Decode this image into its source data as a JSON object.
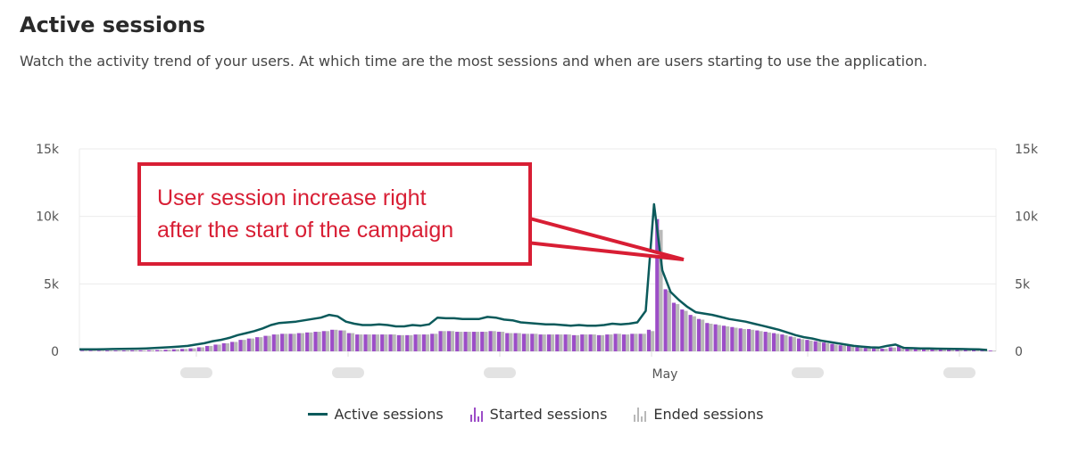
{
  "header": {
    "title": "Active sessions",
    "description": "Watch the activity trend of your users. At which time are the most sessions and when are users starting to use the application."
  },
  "annotation": {
    "text_line1": "User session increase right",
    "text_line2": "after the start of the campaign",
    "color": "#d81e34"
  },
  "legend": {
    "active": "Active sessions",
    "started": "Started sessions",
    "ended": "Ended sessions"
  },
  "colors": {
    "active": "#0b5a5b",
    "started": "#9c4dc7",
    "ended": "#b9b9b9",
    "grid": "#ebebeb"
  },
  "chart_data": {
    "type": "bar",
    "title": "Active sessions",
    "xlabel": "",
    "ylabel": "",
    "ylim": [
      0,
      15000
    ],
    "y_ticks": [
      "0",
      "5k",
      "10k",
      "15k"
    ],
    "x_tick_labels": [
      "(blurred)",
      "(blurred)",
      "(blurred)",
      "May",
      "(blurred)",
      "(blurred)"
    ],
    "grid": true,
    "legend_position": "bottom",
    "series": [
      {
        "name": "Active sessions",
        "type": "line",
        "values": [
          150,
          150,
          150,
          160,
          170,
          180,
          190,
          200,
          220,
          250,
          280,
          320,
          360,
          400,
          500,
          600,
          750,
          850,
          1000,
          1200,
          1350,
          1500,
          1700,
          1950,
          2100,
          2150,
          2200,
          2300,
          2400,
          2500,
          2700,
          2600,
          2200,
          2050,
          1950,
          1950,
          2000,
          1950,
          1850,
          1850,
          1950,
          1900,
          2000,
          2500,
          2450,
          2450,
          2400,
          2400,
          2400,
          2550,
          2500,
          2350,
          2300,
          2150,
          2100,
          2050,
          2000,
          2000,
          1950,
          1900,
          1950,
          1900,
          1900,
          1950,
          2050,
          2000,
          2050,
          2150,
          3000,
          10900,
          6000,
          4400,
          3800,
          3300,
          2900,
          2800,
          2700,
          2550,
          2400,
          2300,
          2200,
          2050,
          1900,
          1750,
          1600,
          1400,
          1200,
          1050,
          950,
          800,
          700,
          600,
          500,
          400,
          350,
          300,
          280,
          400,
          500,
          260,
          240,
          220,
          210,
          200,
          190,
          180,
          170,
          160,
          150,
          100
        ]
      },
      {
        "name": "Started sessions",
        "type": "bar",
        "values": [
          50,
          50,
          50,
          60,
          60,
          70,
          80,
          80,
          90,
          100,
          120,
          150,
          180,
          220,
          300,
          400,
          500,
          600,
          700,
          850,
          950,
          1050,
          1150,
          1250,
          1300,
          1300,
          1350,
          1400,
          1450,
          1500,
          1600,
          1550,
          1350,
          1250,
          1250,
          1250,
          1250,
          1250,
          1200,
          1200,
          1250,
          1250,
          1300,
          1500,
          1500,
          1450,
          1450,
          1450,
          1450,
          1500,
          1450,
          1350,
          1350,
          1300,
          1300,
          1250,
          1250,
          1250,
          1250,
          1200,
          1250,
          1250,
          1200,
          1250,
          1300,
          1250,
          1300,
          1300,
          1600,
          9800,
          4600,
          3600,
          3100,
          2700,
          2400,
          2100,
          2000,
          1900,
          1800,
          1700,
          1650,
          1550,
          1450,
          1350,
          1250,
          1100,
          950,
          850,
          750,
          650,
          550,
          450,
          400,
          300,
          250,
          220,
          200,
          300,
          380,
          200,
          180,
          160,
          150,
          140,
          130,
          120,
          110,
          100,
          90,
          60
        ]
      },
      {
        "name": "Ended sessions",
        "type": "bar",
        "values": [
          50,
          50,
          50,
          60,
          60,
          70,
          80,
          80,
          90,
          100,
          120,
          150,
          180,
          220,
          300,
          400,
          500,
          600,
          700,
          850,
          950,
          1050,
          1150,
          1250,
          1300,
          1300,
          1350,
          1400,
          1450,
          1500,
          1600,
          1550,
          1350,
          1250,
          1250,
          1250,
          1250,
          1250,
          1200,
          1200,
          1250,
          1250,
          1300,
          1500,
          1500,
          1450,
          1450,
          1450,
          1450,
          1500,
          1450,
          1350,
          1350,
          1300,
          1300,
          1250,
          1250,
          1250,
          1250,
          1200,
          1250,
          1250,
          1200,
          1250,
          1300,
          1250,
          1300,
          1300,
          1500,
          9000,
          4500,
          3500,
          3000,
          2600,
          2350,
          2050,
          1950,
          1850,
          1750,
          1650,
          1600,
          1500,
          1400,
          1300,
          1200,
          1050,
          900,
          800,
          700,
          600,
          500,
          420,
          380,
          280,
          240,
          210,
          190,
          280,
          360,
          190,
          170,
          150,
          140,
          130,
          120,
          110,
          100,
          90,
          80,
          50
        ]
      }
    ]
  }
}
